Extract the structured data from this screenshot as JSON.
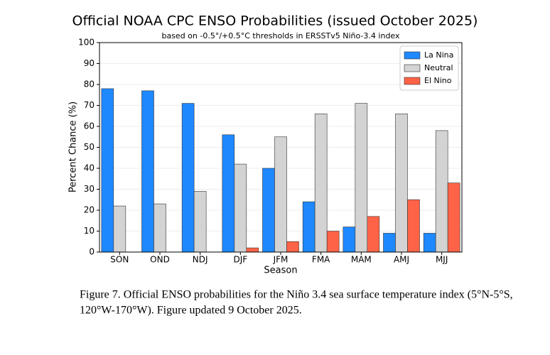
{
  "chart_data": {
    "type": "bar",
    "title": "Official NOAA CPC ENSO Probabilities (issued October 2025)",
    "subtitle": "based on -0.5°/+0.5°C thresholds in ERSSTv5 Niño-3.4 index",
    "xlabel": "Season",
    "ylabel": "Percent Chance (%)",
    "categories": [
      "SON",
      "OND",
      "NDJ",
      "DJF",
      "JFM",
      "FMA",
      "MAM",
      "AMJ",
      "MJJ"
    ],
    "series": [
      {
        "name": "La Nina",
        "color": "#1e88ff",
        "values": [
          78,
          77,
          71,
          56,
          40,
          24,
          12,
          9,
          9
        ]
      },
      {
        "name": "Neutral",
        "color": "#d3d3d3",
        "values": [
          22,
          23,
          29,
          42,
          55,
          66,
          71,
          66,
          58
        ]
      },
      {
        "name": "El Nino",
        "color": "#ff6347",
        "values": [
          0,
          0,
          0,
          2,
          5,
          10,
          17,
          25,
          33
        ]
      }
    ],
    "ylim": [
      0,
      100
    ],
    "yticks": [
      0,
      10,
      20,
      30,
      40,
      50,
      60,
      70,
      80,
      90,
      100
    ],
    "grid": true,
    "legend": "upper right"
  },
  "caption": [
    "Figure 7. Official ENSO probabilities for the Niño 3.4 sea surface temperature index (5°N-5°S,",
    "120°W-170°W). Figure updated 9 October 2025."
  ]
}
